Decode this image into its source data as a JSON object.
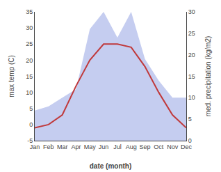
{
  "chart_data": {
    "type": "line",
    "x_label": "date (month)",
    "y_label": "max temp (C)",
    "y2_label": "med. precipitation (kg/m2)",
    "categories": [
      "Jan",
      "Feb",
      "Mar",
      "Apr",
      "May",
      "Jun",
      "Jul",
      "Aug",
      "Sep",
      "Oct",
      "Nov",
      "Dec"
    ],
    "series": [
      {
        "type": "line",
        "color": "#c0393b",
        "values": [
          -1,
          0,
          3,
          12,
          20,
          25,
          25,
          24,
          18,
          10,
          3,
          -1
        ]
      },
      {
        "type": "area",
        "color": "#c5cdf0",
        "axis": "y2",
        "values": [
          7,
          8,
          10,
          12,
          26,
          30,
          24,
          30,
          19,
          14,
          10,
          10
        ]
      }
    ],
    "ylim": [
      -5,
      35
    ],
    "yticks": [
      -5,
      0,
      5,
      10,
      15,
      20,
      25,
      30,
      35
    ],
    "y2lim": [
      0,
      30
    ],
    "y2ticks": [
      0,
      5,
      10,
      15,
      20,
      25,
      30
    ],
    "grid": false
  }
}
